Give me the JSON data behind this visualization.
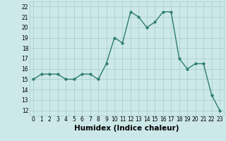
{
  "x": [
    0,
    1,
    2,
    3,
    4,
    5,
    6,
    7,
    8,
    9,
    10,
    11,
    12,
    13,
    14,
    15,
    16,
    17,
    18,
    19,
    20,
    21,
    22,
    23
  ],
  "y": [
    15,
    15.5,
    15.5,
    15.5,
    15,
    15,
    15.5,
    15.5,
    15,
    16.5,
    19,
    18.5,
    21.5,
    21,
    20,
    20.5,
    21.5,
    21.5,
    17,
    16,
    16.5,
    16.5,
    13.5,
    12
  ],
  "ylim": [
    11.5,
    22.5
  ],
  "xlim": [
    -0.5,
    23.5
  ],
  "yticks": [
    12,
    13,
    14,
    15,
    16,
    17,
    18,
    19,
    20,
    21,
    22
  ],
  "xticks": [
    0,
    1,
    2,
    3,
    4,
    5,
    6,
    7,
    8,
    9,
    10,
    11,
    12,
    13,
    14,
    15,
    16,
    17,
    18,
    19,
    20,
    21,
    22,
    23
  ],
  "xlabel": "Humidex (Indice chaleur)",
  "line_color": "#2d7d6e",
  "marker": "o",
  "marker_size": 2,
  "bg_color": "#cce8e8",
  "grid_color": "#a8cccc",
  "tick_fontsize": 5.5,
  "xlabel_fontsize": 7.5,
  "line_width": 1.0
}
